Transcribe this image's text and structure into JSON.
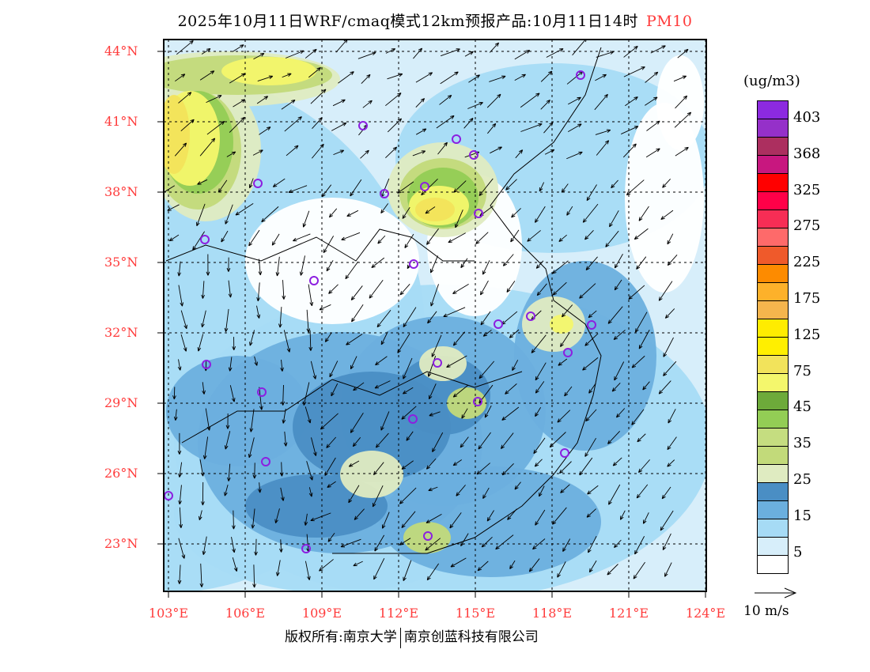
{
  "title": {
    "text": "2025年10月11日WRF/cmaq模式12km预报产品:10月11日14时",
    "variable": "PM10"
  },
  "axes": {
    "lat_labels": [
      "44°N",
      "41°N",
      "38°N",
      "35°N",
      "32°N",
      "29°N",
      "26°N",
      "23°N"
    ],
    "lon_labels": [
      "103°E",
      "106°E",
      "109°E",
      "112°E",
      "115°E",
      "118°E",
      "121°E",
      "124°E"
    ]
  },
  "colorbar": {
    "unit": "(ug/m3)",
    "labels": [
      "5",
      "15",
      "25",
      "35",
      "45",
      "75",
      "125",
      "175",
      "225",
      "275",
      "325",
      "368",
      "403"
    ],
    "colors_bottom_to_top": [
      "#ffffff",
      "#d7eefa",
      "#a6dbf5",
      "#6bafde",
      "#4a8ec4",
      "#dfebc1",
      "#c2da7a",
      "#c5dd80",
      "#93cd55",
      "#6daa3a",
      "#f4f76c",
      "#f2e35b",
      "#ffef00",
      "#ffec00",
      "#f5b54d",
      "#fdb12a",
      "#fd8b00",
      "#ef5a2b",
      "#fe6a6a",
      "#f72d55",
      "#ff0048",
      "#ff0000",
      "#c8177f",
      "#ac2f5f",
      "#9530c9",
      "#8c2ae0"
    ]
  },
  "wind_reference": {
    "label": "10 m/s"
  },
  "footer": {
    "left": "版权所有:南京大学",
    "right": "南京创蓝科技有限公司"
  }
}
